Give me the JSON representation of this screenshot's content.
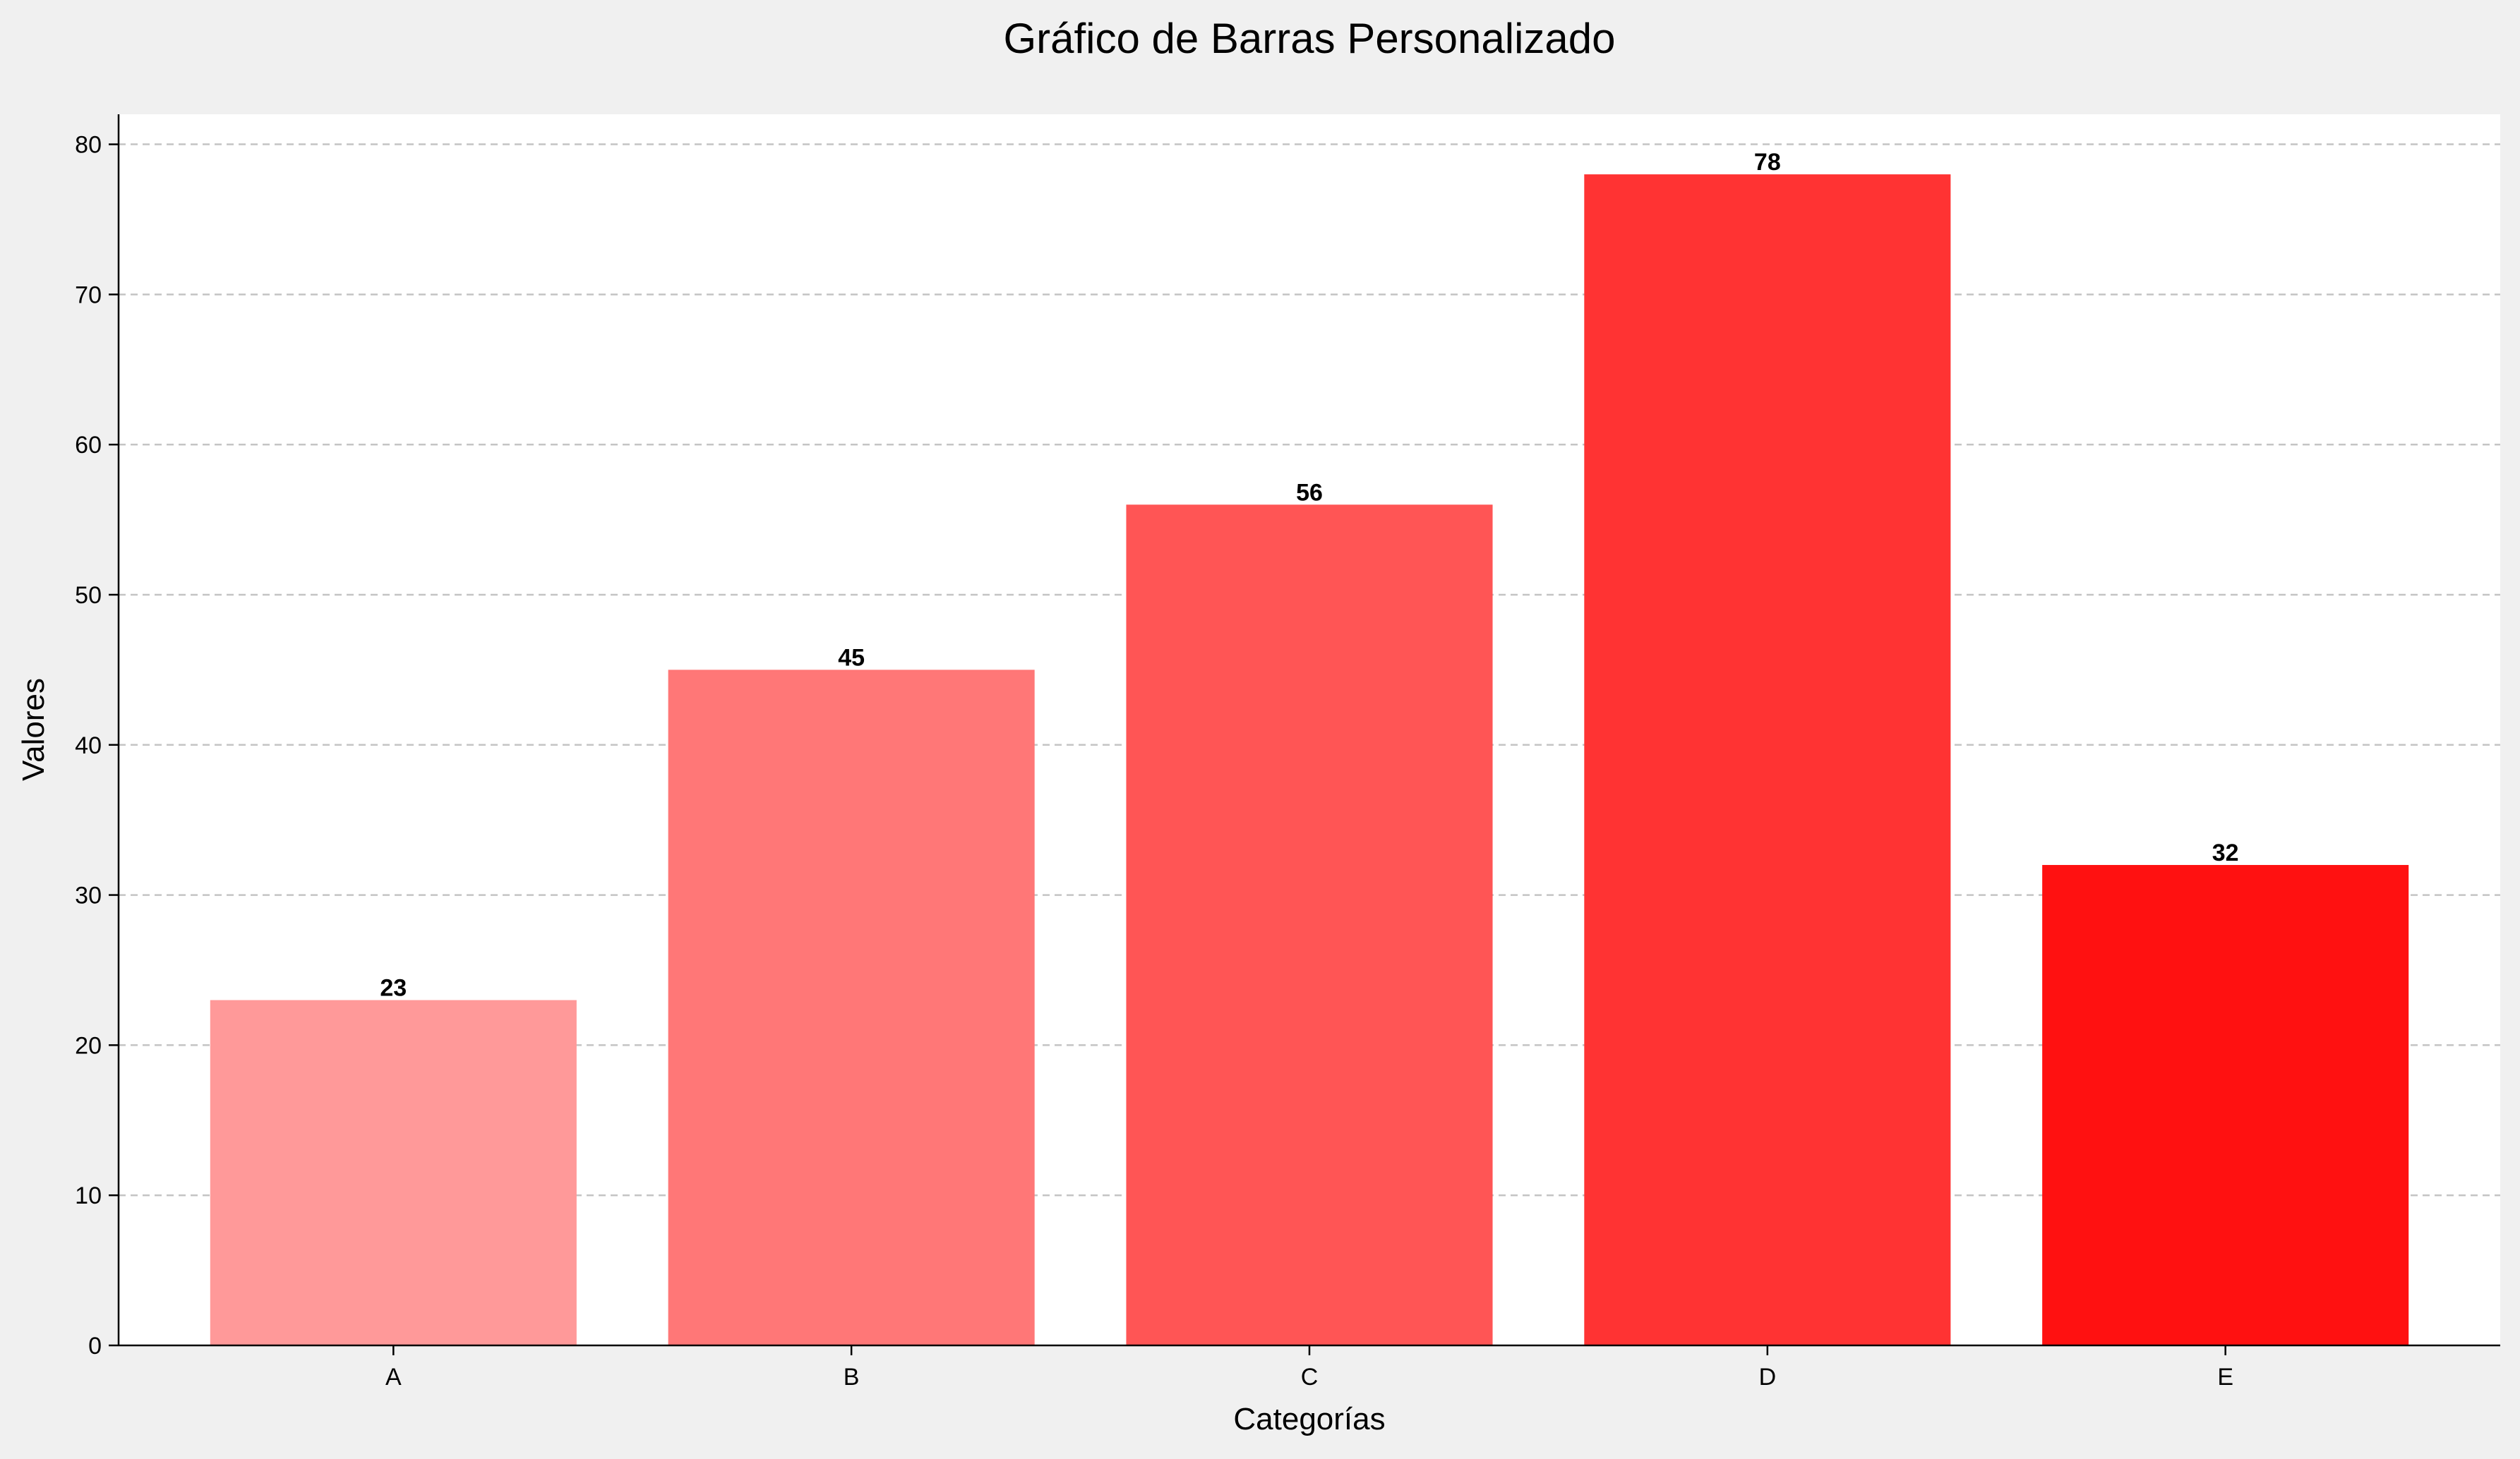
{
  "chart_data": {
    "type": "bar",
    "title": "Gráfico de Barras Personalizado",
    "xlabel": "Categorías",
    "ylabel": "Valores",
    "categories": [
      "A",
      "B",
      "C",
      "D",
      "E"
    ],
    "values": [
      23,
      45,
      56,
      78,
      32
    ],
    "value_labels": [
      "23",
      "45",
      "56",
      "78",
      "32"
    ],
    "colors": [
      "#ff9999",
      "#ff7777",
      "#ff5555",
      "#ff3333",
      "#ff1111"
    ],
    "ylim": [
      0,
      82
    ],
    "yticks": [
      0,
      10,
      20,
      30,
      40,
      50,
      60,
      70,
      80
    ],
    "grid": "y-dashed",
    "background": "#f0f0f0",
    "plot_background": "#ffffff",
    "legend": "none"
  }
}
